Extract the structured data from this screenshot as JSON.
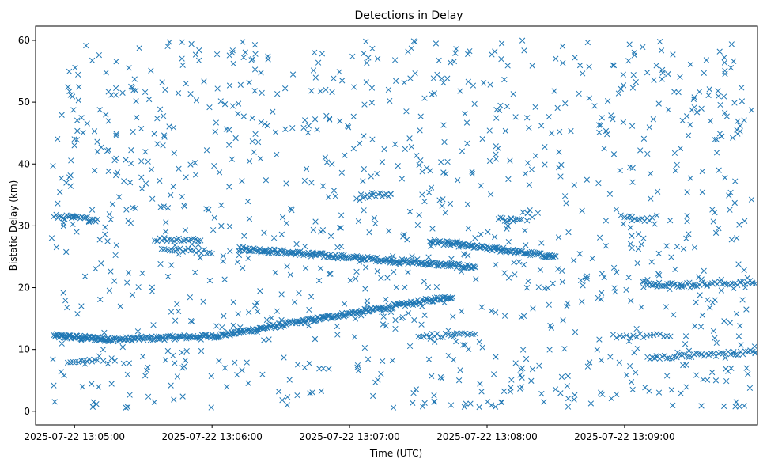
{
  "chart_data": {
    "type": "scatter",
    "title": "Detections in Delay",
    "xlabel": "Time (UTC)",
    "ylabel": "Bistatic Delay (km)",
    "marker": "x",
    "color": "#1f77b4",
    "grid": false,
    "legend": "none",
    "x_range": [
      "2025-07-22 13:04:43",
      "2025-07-22 13:09:58"
    ],
    "ylim": [
      -2.2,
      62.3
    ],
    "x_ticks": [
      "2025-07-22 13:05:00",
      "2025-07-22 13:06:00",
      "2025-07-22 13:07:00",
      "2025-07-22 13:08:00",
      "2025-07-22 13:09:00"
    ],
    "y_ticks": [
      0,
      10,
      20,
      30,
      40,
      50,
      60
    ],
    "tracks": [
      {
        "x_start": "2025-07-22 13:04:51",
        "x_end": "2025-07-22 13:05:17",
        "y_start": 12.2,
        "y_end": 11.6,
        "points": 70
      },
      {
        "x_start": "2025-07-22 13:05:17",
        "x_end": "2025-07-22 13:06:02",
        "y_start": 11.6,
        "y_end": 12.2,
        "points": 90
      },
      {
        "x_start": "2025-07-22 13:06:02",
        "x_end": "2025-07-22 13:07:45",
        "y_start": 12.2,
        "y_end": 18.6,
        "points": 210
      },
      {
        "x_start": "2025-07-22 13:06:12",
        "x_end": "2025-07-22 13:07:55",
        "y_start": 26.3,
        "y_end": 23.3,
        "points": 200
      },
      {
        "x_start": "2025-07-22 13:07:35",
        "x_end": "2025-07-22 13:08:30",
        "y_start": 27.5,
        "y_end": 25.0,
        "points": 110
      },
      {
        "x_start": "2025-07-22 13:04:52",
        "x_end": "2025-07-22 13:05:10",
        "y_start": 31.5,
        "y_end": 31.0,
        "points": 25
      },
      {
        "x_start": "2025-07-22 13:05:35",
        "x_end": "2025-07-22 13:05:55",
        "y_start": 27.8,
        "y_end": 27.8,
        "points": 20
      },
      {
        "x_start": "2025-07-22 13:05:38",
        "x_end": "2025-07-22 13:06:00",
        "y_start": 26.2,
        "y_end": 25.8,
        "points": 20
      },
      {
        "x_start": "2025-07-22 13:07:05",
        "x_end": "2025-07-22 13:07:18",
        "y_start": 34.8,
        "y_end": 35.1,
        "points": 15
      },
      {
        "x_start": "2025-07-22 13:08:05",
        "x_end": "2025-07-22 13:08:15",
        "y_start": 31.1,
        "y_end": 30.9,
        "points": 12
      },
      {
        "x_start": "2025-07-22 13:09:08",
        "x_end": "2025-07-22 13:09:25",
        "y_start": 20.8,
        "y_end": 20.4,
        "points": 25
      },
      {
        "x_start": "2025-07-22 13:09:25",
        "x_end": "2025-07-22 13:09:57",
        "y_start": 20.5,
        "y_end": 20.8,
        "points": 30
      },
      {
        "x_start": "2025-07-22 13:09:10",
        "x_end": "2025-07-22 13:09:57",
        "y_start": 8.6,
        "y_end": 9.6,
        "points": 45
      },
      {
        "x_start": "2025-07-22 13:04:57",
        "x_end": "2025-07-22 13:05:10",
        "y_start": 8.2,
        "y_end": 8.2,
        "points": 12
      },
      {
        "x_start": "2025-07-22 13:07:30",
        "x_end": "2025-07-22 13:07:55",
        "y_start": 12.3,
        "y_end": 12.3,
        "points": 22
      },
      {
        "x_start": "2025-07-22 13:08:55",
        "x_end": "2025-07-22 13:09:20",
        "y_start": 12.2,
        "y_end": 12.2,
        "points": 18
      },
      {
        "x_start": "2025-07-22 13:09:00",
        "x_end": "2025-07-22 13:09:12",
        "y_start": 31.3,
        "y_end": 31.0,
        "points": 12
      }
    ],
    "scattered_points": {
      "count": 1100,
      "y_min": 0.5,
      "y_max": 60
    }
  }
}
